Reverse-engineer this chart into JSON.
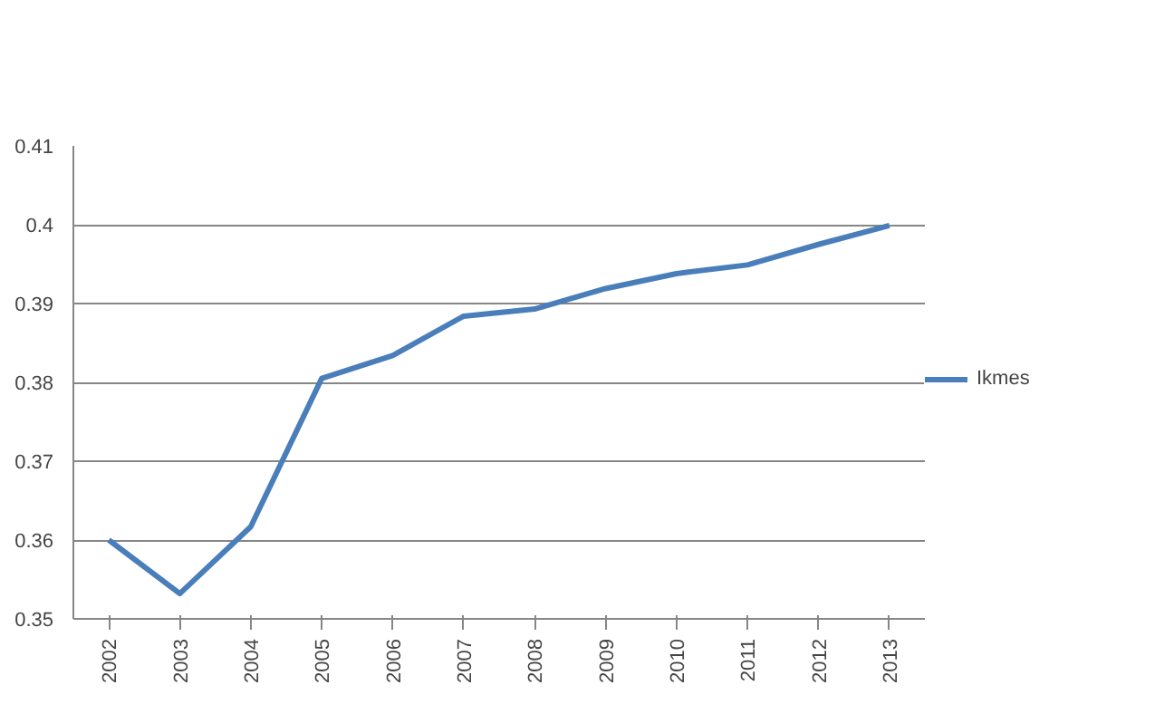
{
  "chart_data": {
    "type": "line",
    "categories": [
      "2002",
      "2003",
      "2004",
      "2005",
      "2006",
      "2007",
      "2008",
      "2009",
      "2010",
      "2011",
      "2012",
      "2013"
    ],
    "series": [
      {
        "name": "Ikmes",
        "color": "#4a7ebb",
        "values": [
          0.36,
          0.3532,
          0.3617,
          0.3805,
          0.3834,
          0.3884,
          0.3893,
          0.3919,
          0.3938,
          0.3949,
          0.3975,
          0.3999
        ]
      }
    ],
    "ylim": [
      0.35,
      0.41
    ],
    "yticks": [
      0.35,
      0.36,
      0.37,
      0.38,
      0.39,
      0.4,
      0.41
    ],
    "grid": "y",
    "legend": "right",
    "marker": "none",
    "line_style": "solid"
  }
}
